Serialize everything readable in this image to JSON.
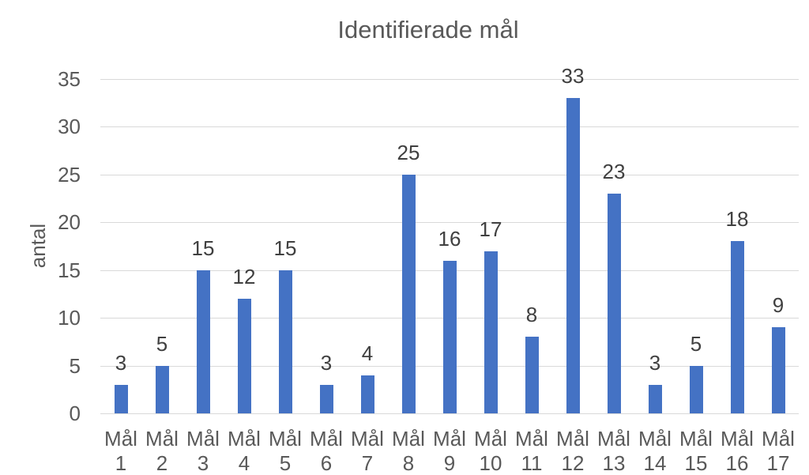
{
  "chart_data": {
    "type": "bar",
    "title": "Identifierade mål",
    "xlabel": "",
    "ylabel": "antal",
    "categories": [
      "Mål 1",
      "Mål 2",
      "Mål 3",
      "Mål 4",
      "Mål 5",
      "Mål 6",
      "Mål 7",
      "Mål 8",
      "Mål 9",
      "Mål 10",
      "Mål 11",
      "Mål 12",
      "Mål 13",
      "Mål 14",
      "Mål 15",
      "Mål 16",
      "Mål 17"
    ],
    "values": [
      3,
      5,
      15,
      12,
      15,
      3,
      4,
      25,
      16,
      17,
      8,
      33,
      23,
      3,
      5,
      18,
      9
    ],
    "ylim": [
      0,
      35
    ],
    "yticks": [
      0,
      5,
      10,
      15,
      20,
      25,
      30,
      35
    ],
    "grid": "horizontal",
    "legend": "none",
    "data_labels": true,
    "colors": {
      "bar": "#4472C4",
      "title_text": "#595959",
      "axis_text": "#595959",
      "data_label_text": "#404040",
      "gridline": "#D9D9D9",
      "background": "#FFFFFF"
    }
  }
}
